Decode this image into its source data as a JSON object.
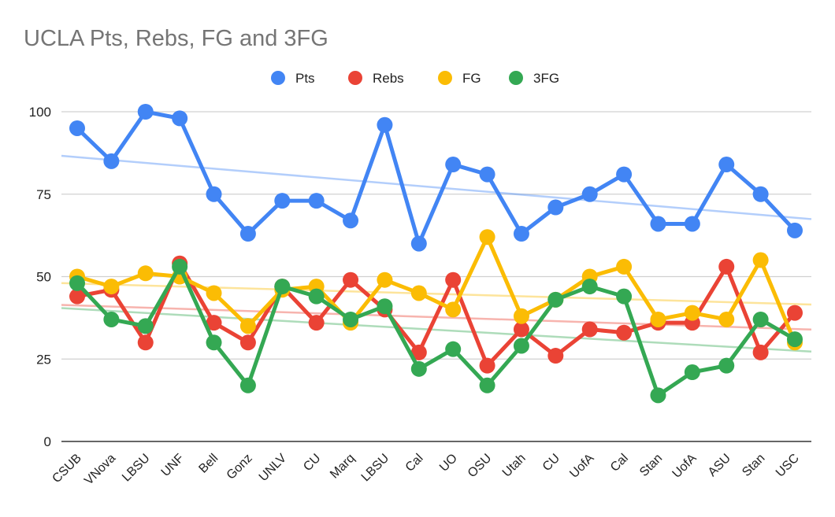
{
  "chart_data": {
    "type": "line",
    "title": "UCLA Pts, Rebs, FG and 3FG",
    "xlabel": "",
    "ylabel": "",
    "ylim": [
      0,
      100
    ],
    "yticks": [
      0,
      25,
      50,
      75,
      100
    ],
    "grid": true,
    "legend_position": "top",
    "trendlines": true,
    "categories": [
      "CSUB",
      "VNova",
      "LBSU",
      "UNF",
      "Bell",
      "Gonz",
      "UNLV",
      "CU",
      "Marq",
      "LBSU",
      "Cal",
      "UO",
      "OSU",
      "Utah",
      "CU",
      "UofA",
      "Cal",
      "Stan",
      "UofA",
      "ASU",
      "Stan",
      "USC"
    ],
    "series": [
      {
        "name": "Pts",
        "color": "#4285f4",
        "values": [
          95,
          85,
          100,
          98,
          75,
          63,
          73,
          73,
          67,
          96,
          60,
          84,
          81,
          63,
          71,
          75,
          81,
          66,
          66,
          84,
          75,
          64
        ]
      },
      {
        "name": "Rebs",
        "color": "#ea4335",
        "values": [
          44,
          46,
          30,
          54,
          36,
          30,
          47,
          36,
          49,
          40,
          27,
          49,
          23,
          34,
          26,
          34,
          33,
          36,
          36,
          53,
          27,
          39
        ]
      },
      {
        "name": "FG",
        "color": "#fbbc04",
        "values": [
          50,
          47,
          51,
          50,
          45,
          35,
          46,
          47,
          36,
          49,
          45,
          40,
          62,
          38,
          43,
          50,
          53,
          37,
          39,
          37,
          55,
          30
        ]
      },
      {
        "name": "3FG",
        "color": "#34a853",
        "values": [
          48,
          37,
          35,
          53,
          30,
          17,
          47,
          44,
          37,
          41,
          22,
          28,
          17,
          29,
          43,
          47,
          44,
          14,
          21,
          23,
          37,
          31
        ]
      }
    ]
  }
}
